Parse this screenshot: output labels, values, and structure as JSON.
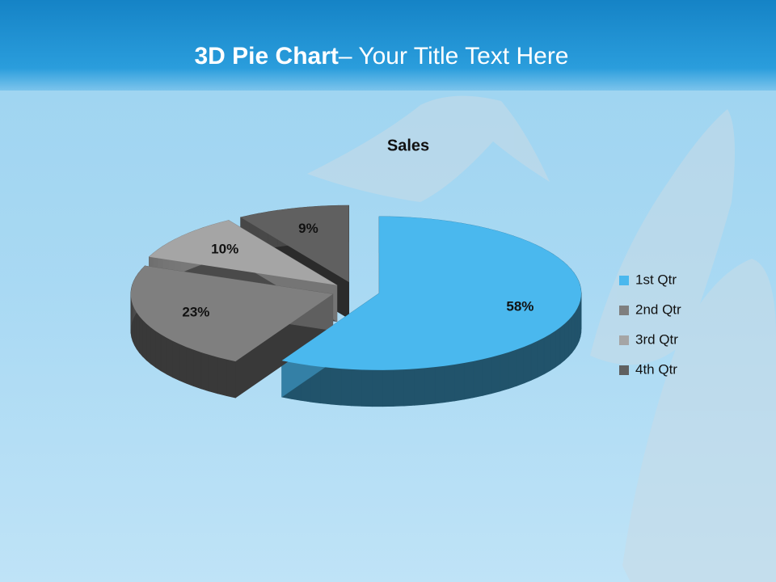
{
  "slide": {
    "title_bold": "3D Pie Chart",
    "title_rest": "– Your Title Text Here"
  },
  "chart_data": {
    "type": "pie3d",
    "title": "Sales",
    "categories": [
      "1st Qtr",
      "2nd Qtr",
      "3rd Qtr",
      "4th Qtr"
    ],
    "values": [
      58,
      23,
      10,
      9
    ],
    "value_labels": [
      "58%",
      "23%",
      "10%",
      "9%"
    ],
    "colors": [
      "#4ab8ee",
      "#7f7f7f",
      "#a5a5a5",
      "#606060"
    ],
    "legend": "right"
  }
}
